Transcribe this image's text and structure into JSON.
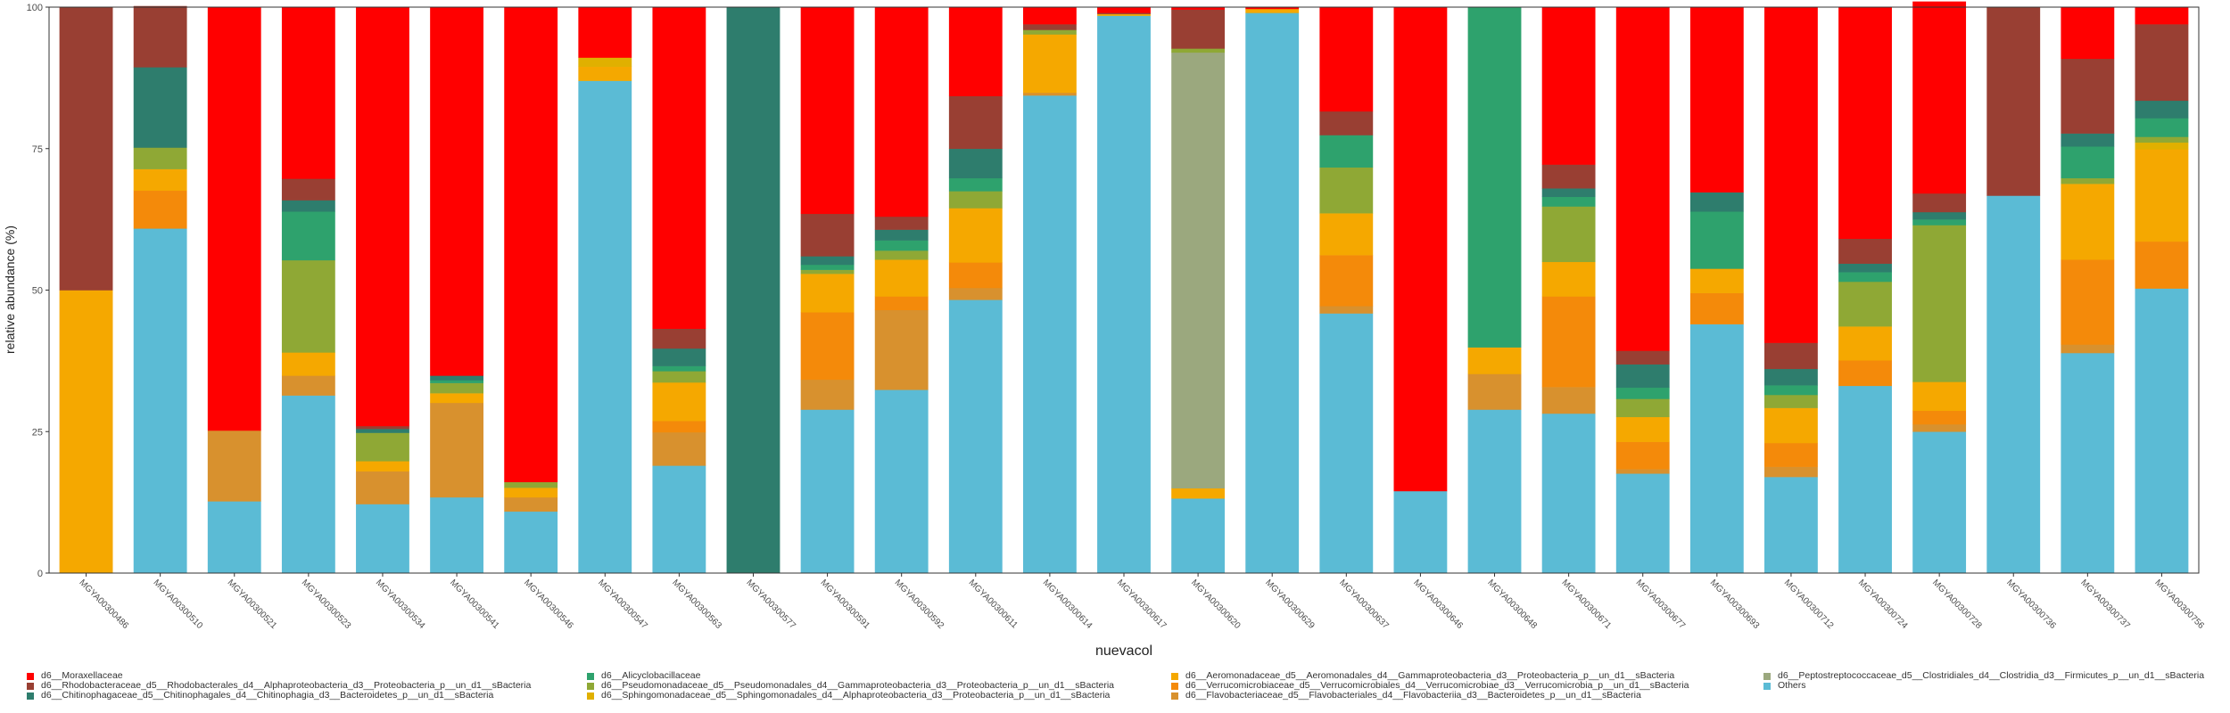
{
  "chart_data": {
    "type": "bar",
    "stacked": true,
    "xlabel": "nuevacol",
    "ylabel": "relative abundance (%)",
    "ylim": [
      0,
      100
    ],
    "yticks": [
      "0",
      "25",
      "50",
      "75",
      "100"
    ],
    "grid": false,
    "legend_position": "bottom",
    "categories": [
      "MGYA00300486",
      "MGYA00300510",
      "MGYA00300521",
      "MGYA00300523",
      "MGYA00300534",
      "MGYA00300541",
      "MGYA00300546",
      "MGYA00300547",
      "MGYA00300563",
      "MGYA00300577",
      "MGYA00300591",
      "MGYA00300592",
      "MGYA00300611",
      "MGYA00300614",
      "MGYA00300617",
      "MGYA00300620",
      "MGYA00300629",
      "MGYA00300637",
      "MGYA00300646",
      "MGYA00300648",
      "MGYA00300671",
      "MGYA00300677",
      "MGYA00300693",
      "MGYA00300712",
      "MGYA00300724",
      "MGYA00300728",
      "MGYA00300736",
      "MGYA00300737",
      "MGYA00300756"
    ],
    "series": [
      {
        "name": "Others",
        "color": "#5BBBD5",
        "values": [
          0,
          60.9,
          12.7,
          31.4,
          12.2,
          13.4,
          10.9,
          87.0,
          19.0,
          0,
          28.9,
          32.4,
          48.3,
          84.4,
          98.5,
          13.2,
          99.0,
          45.9,
          14.5,
          28.9,
          28.2,
          17.6,
          44.0,
          17.0,
          33.1,
          25.0,
          66.7,
          38.9,
          50.3
        ]
      },
      {
        "name": "d6__Flavobacteriaceae_d5__Flavobacteriales_d4__Flavobacteriia_d3__Bacteroidetes_p__un_d1__sBacteria",
        "color": "#D8912E",
        "values": [
          0,
          0,
          12.5,
          3.5,
          5.8,
          16.7,
          2.5,
          0,
          5.9,
          0,
          5.3,
          14.1,
          2.1,
          0.5,
          0,
          0,
          0,
          1.3,
          0,
          6.3,
          4.7,
          0.8,
          0,
          1.8,
          0,
          1.3,
          0,
          1.5,
          0
        ]
      },
      {
        "name": "d6__Verrucomicrobiaceae_d5__Verrucomicrobiales_d4__Verrucomicrobiae_d3__Verrucomicrobia_p__un_d1__sBacteria",
        "color": "#F48A0A",
        "values": [
          0,
          6.7,
          0,
          0,
          0,
          0,
          0,
          0,
          2.0,
          0,
          11.9,
          2.4,
          4.5,
          0,
          0,
          0,
          0,
          9.0,
          0,
          0,
          16.0,
          4.8,
          5.5,
          4.2,
          4.5,
          2.4,
          0,
          15.0,
          8.3
        ]
      },
      {
        "name": "d6__Aeromonadaceae_d5__Aeromonadales_d4__Gammaproteobacteria_d3__Proteobacteria_p__un_d1__sBacteria",
        "color": "#F5A800",
        "values": [
          50.0,
          3.8,
          0,
          4.1,
          1.8,
          1.7,
          1.7,
          2.5,
          6.8,
          0,
          6.8,
          6.5,
          9.6,
          10.3,
          0.3,
          1.8,
          0.7,
          7.4,
          0,
          4.7,
          6.1,
          4.4,
          4.3,
          6.2,
          6.0,
          5.1,
          0,
          13.4,
          16.3
        ]
      },
      {
        "name": "d6__Peptostreptococcaceae_d5__Clostridiales_d4__Clostridia_d3__Firmicutes_p__un_d1__sBacteria",
        "color": "#9BA87E",
        "values": [
          0,
          0,
          0,
          0,
          0,
          0,
          0,
          0,
          0,
          0,
          0,
          0,
          0,
          0,
          0,
          77.0,
          0,
          0,
          0,
          0,
          0,
          0,
          0,
          0,
          0,
          0,
          0,
          0,
          0
        ]
      },
      {
        "name": "d6__Sphingomonadaceae_d5__Sphingomonadales_d4__Alphaproteobacteria_d3__Proteobacteria_p__un_d1__sBacteria",
        "color": "#E0B000",
        "values": [
          0,
          0,
          0,
          0,
          0,
          0,
          0,
          1.6,
          0,
          0,
          0,
          0,
          0,
          0,
          0,
          0,
          0,
          0,
          0,
          0,
          0,
          0,
          0,
          0,
          0,
          0,
          0,
          0,
          1.2
        ]
      },
      {
        "name": "d6__Pseudomonadaceae_d5__Pseudomonadales_d4__Gammaproteobacteria_d3__Proteobacteria_p__un_d1__sBacteria",
        "color": "#8FA835",
        "values": [
          0,
          3.8,
          0,
          16.3,
          5.0,
          1.8,
          1.0,
          0,
          2.0,
          0,
          0.7,
          1.6,
          3.0,
          0.8,
          0,
          0.7,
          0,
          8.1,
          0,
          0,
          9.8,
          3.2,
          0,
          2.3,
          7.9,
          27.7,
          0,
          1.0,
          1.0
        ]
      },
      {
        "name": "d6__Alicyclobacillaceae",
        "color": "#2EA26D",
        "values": [
          0,
          0,
          0,
          8.6,
          0,
          0.5,
          0,
          0,
          0.9,
          0,
          0.9,
          1.8,
          2.3,
          0,
          0,
          0,
          0,
          5.7,
          0,
          60.1,
          1.7,
          2.0,
          10.1,
          1.7,
          1.7,
          1.0,
          0,
          5.6,
          3.3
        ]
      },
      {
        "name": "d6__Chitinophagaceae_d5__Chitinophagales_d4__Chitinophagia_d3__Bacteroidetes_p__un_d1__sBacteria",
        "color": "#2E7D6D",
        "values": [
          0,
          14.2,
          0,
          2.0,
          0.7,
          0.8,
          0,
          0,
          3.1,
          100,
          1.5,
          1.9,
          5.2,
          0,
          0,
          0,
          0,
          0,
          0,
          0,
          1.5,
          4.1,
          3.4,
          2.9,
          1.5,
          1.3,
          0,
          2.3,
          3.1
        ]
      },
      {
        "name": "d6__Rhodobacteraceae_d5__Rhodobacterales_d4__Alphaproteobacteria_d3__Proteobacteria_p__un_d1__sBacteria",
        "color": "#993F33",
        "values": [
          50.0,
          10.8,
          0,
          3.8,
          0.5,
          0,
          0,
          0,
          3.5,
          0,
          7.5,
          2.3,
          9.3,
          1.0,
          0.2,
          6.9,
          0,
          4.2,
          0,
          0,
          4.2,
          2.4,
          0,
          4.6,
          4.4,
          3.3,
          33.3,
          13.2,
          13.5
        ]
      },
      {
        "name": "d6__Moraxellaceae",
        "color": "#FF0000",
        "values": [
          0,
          0,
          74.8,
          30.3,
          74.0,
          65.1,
          83.9,
          8.9,
          56.8,
          0,
          36.5,
          37.0,
          15.7,
          3.0,
          1.0,
          0.4,
          0.3,
          18.4,
          85.5,
          0,
          27.8,
          60.7,
          32.7,
          59.3,
          40.9,
          33.9,
          0,
          9.1,
          3.0
        ]
      }
    ]
  },
  "legend": {
    "columns": [
      [
        {
          "label": "d6__Moraxellaceae",
          "color": "#FF0000"
        },
        {
          "label": "d6__Rhodobacteraceae_d5__Rhodobacterales_d4__Alphaproteobacteria_d3__Proteobacteria_p__un_d1__sBacteria",
          "color": "#993F33"
        },
        {
          "label": "d6__Chitinophagaceae_d5__Chitinophagales_d4__Chitinophagia_d3__Bacteroidetes_p__un_d1__sBacteria",
          "color": "#2E7D6D"
        }
      ],
      [
        {
          "label": "d6__Alicyclobacillaceae",
          "color": "#2EA26D"
        },
        {
          "label": "d6__Pseudomonadaceae_d5__Pseudomonadales_d4__Gammaproteobacteria_d3__Proteobacteria_p__un_d1__sBacteria",
          "color": "#8FA835"
        },
        {
          "label": "d6__Sphingomonadaceae_d5__Sphingomonadales_d4__Alphaproteobacteria_d3__Proteobacteria_p__un_d1__sBacteria",
          "color": "#E0B000"
        }
      ],
      [
        {
          "label": "d6__Aeromonadaceae_d5__Aeromonadales_d4__Gammaproteobacteria_d3__Proteobacteria_p__un_d1__sBacteria",
          "color": "#F5A800"
        },
        {
          "label": "d6__Verrucomicrobiaceae_d5__Verrucomicrobiales_d4__Verrucomicrobiae_d3__Verrucomicrobia_p__un_d1__sBacteria",
          "color": "#F48A0A"
        },
        {
          "label": "d6__Flavobacteriaceae_d5__Flavobacteriales_d4__Flavobacteriia_d3__Bacteroidetes_p__un_d1__sBacteria",
          "color": "#D8912E"
        }
      ],
      [
        {
          "label": "d6__Peptostreptococcaceae_d5__Clostridiales_d4__Clostridia_d3__Firmicutes_p__un_d1__sBacteria",
          "color": "#9BA87E"
        },
        {
          "label": "Others",
          "color": "#5BBBD5"
        }
      ]
    ]
  }
}
